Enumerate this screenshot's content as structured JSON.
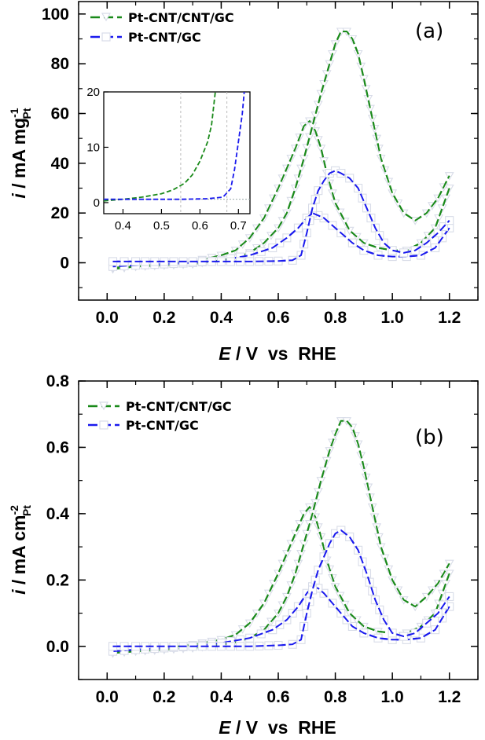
{
  "chart_data": [
    {
      "type": "line",
      "panel_label": "(a)",
      "title": "",
      "xlabel_italic": "E",
      "xlabel_rest": " / V  vs  RHE",
      "ylabel_italic": "i",
      "ylabel_rest": " / mA mg",
      "ylabel_sup": "-1",
      "ylabel_sub": "Pt",
      "xlim": [
        -0.1,
        1.3
      ],
      "ylim": [
        -15,
        105
      ],
      "xticks": [
        "0.0",
        "0.2",
        "0.4",
        "0.6",
        "0.8",
        "1.0",
        "1.2"
      ],
      "xtick_values": [
        0.0,
        0.2,
        0.4,
        0.6,
        0.8,
        1.0,
        1.2
      ],
      "yticks": [
        "0",
        "20",
        "40",
        "60",
        "80",
        "100"
      ],
      "ytick_values": [
        0,
        20,
        40,
        60,
        80,
        100
      ],
      "grid": false,
      "legend_position": "top-left",
      "series": [
        {
          "name": "Pt-CNT/CNT/GC",
          "color": "#1a8a1a",
          "marker": "triangle-down-open",
          "forward": {
            "x": [
              0.02,
              0.1,
              0.2,
              0.3,
              0.4,
              0.45,
              0.5,
              0.55,
              0.6,
              0.63,
              0.66,
              0.69,
              0.72,
              0.75,
              0.78,
              0.8,
              0.82,
              0.84,
              0.86,
              0.88,
              0.9,
              0.93,
              0.96,
              1.0,
              1.04,
              1.08,
              1.12,
              1.16,
              1.2
            ],
            "y": [
              -2,
              -1.5,
              -1,
              -0.5,
              1,
              2,
              4,
              8,
              14,
              20,
              30,
              42,
              55,
              68,
              80,
              88,
              93,
              93,
              90,
              84,
              74,
              58,
              42,
              28,
              20,
              17,
              20,
              26,
              35
            ]
          },
          "reverse": {
            "x": [
              1.2,
              1.15,
              1.1,
              1.05,
              1.0,
              0.95,
              0.9,
              0.85,
              0.8,
              0.77,
              0.75,
              0.73,
              0.71,
              0.69,
              0.66,
              0.63,
              0.6,
              0.55,
              0.5,
              0.45,
              0.4,
              0.3,
              0.2,
              0.1,
              0.02
            ],
            "y": [
              30,
              14,
              8,
              5,
              5,
              6,
              8,
              13,
              24,
              36,
              46,
              53,
              57,
              55,
              46,
              38,
              30,
              18,
              10,
              5,
              3,
              0.5,
              -0.5,
              -1.5,
              -2.5
            ]
          }
        },
        {
          "name": "Pt-CNT/GC",
          "color": "#1a1aee",
          "marker": "square-open",
          "forward": {
            "x": [
              0.02,
              0.1,
              0.2,
              0.3,
              0.4,
              0.5,
              0.6,
              0.65,
              0.68,
              0.7,
              0.72,
              0.74,
              0.76,
              0.78,
              0.8,
              0.82,
              0.85,
              0.88,
              0.91,
              0.94,
              0.97,
              1.0,
              1.04,
              1.08,
              1.12,
              1.16,
              1.2
            ],
            "y": [
              0.5,
              0.5,
              0.5,
              0.5,
              0.5,
              0.5,
              0.7,
              1,
              3,
              12,
              22,
              29,
              33,
              36,
              37,
              36,
              34,
              30,
              22,
              14,
              8,
              5,
              4,
              5,
              8,
              12,
              17
            ]
          },
          "reverse": {
            "x": [
              1.2,
              1.15,
              1.1,
              1.05,
              1.0,
              0.95,
              0.9,
              0.86,
              0.82,
              0.79,
              0.76,
              0.74,
              0.72,
              0.7,
              0.67,
              0.63,
              0.58,
              0.5,
              0.4,
              0.3,
              0.2,
              0.1,
              0.02
            ],
            "y": [
              14,
              6,
              3,
              2.5,
              2.5,
              3,
              5,
              8,
              12,
              15,
              18,
              19,
              20,
              18,
              14,
              10,
              6,
              3,
              1,
              0,
              -0.5,
              -1,
              -1.5
            ]
          }
        }
      ],
      "inset": {
        "xlim": [
          0.35,
          0.73
        ],
        "ylim": [
          -2,
          20
        ],
        "xticks": [
          "0.4",
          "0.5",
          "0.6",
          "0.7"
        ],
        "xtick_values": [
          0.4,
          0.5,
          0.6,
          0.7
        ],
        "yticks": [
          "0",
          "10",
          "20"
        ],
        "ytick_values": [
          0,
          10,
          20
        ],
        "series": [
          {
            "name": "Pt-CNT/CNT/GC",
            "color": "#1a8a1a",
            "x": [
              0.35,
              0.4,
              0.45,
              0.5,
              0.53,
              0.56,
              0.58,
              0.6,
              0.62,
              0.63,
              0.64
            ],
            "y": [
              0.3,
              0.6,
              1.0,
              1.6,
              2.3,
              3.5,
              5,
              7.5,
              11,
              14,
              20
            ]
          },
          {
            "name": "Pt-CNT/GC",
            "color": "#1a1aee",
            "x": [
              0.35,
              0.45,
              0.55,
              0.62,
              0.66,
              0.68,
              0.69,
              0.7,
              0.71,
              0.715
            ],
            "y": [
              0.6,
              0.6,
              0.6,
              0.7,
              1.0,
              2.5,
              6,
              11,
              16,
              20
            ]
          }
        ]
      }
    },
    {
      "type": "line",
      "panel_label": "(b)",
      "title": "",
      "xlabel_italic": "E",
      "xlabel_rest": " / V  vs  RHE",
      "ylabel_italic": "i",
      "ylabel_rest": " / mA cm",
      "ylabel_sup": "-2",
      "ylabel_sub": "Pt",
      "xlim": [
        -0.1,
        1.3
      ],
      "ylim": [
        -0.1,
        0.8
      ],
      "xticks": [
        "0.0",
        "0.2",
        "0.4",
        "0.6",
        "0.8",
        "1.0",
        "1.2"
      ],
      "xtick_values": [
        0.0,
        0.2,
        0.4,
        0.6,
        0.8,
        1.0,
        1.2
      ],
      "yticks": [
        "0.0",
        "0.2",
        "0.4",
        "0.6",
        "0.8"
      ],
      "ytick_values": [
        0.0,
        0.2,
        0.4,
        0.6,
        0.8
      ],
      "grid": false,
      "legend_position": "top-left",
      "series": [
        {
          "name": "Pt-CNT/CNT/GC",
          "color": "#1a8a1a",
          "marker": "triangle-down-open",
          "forward": {
            "x": [
              0.02,
              0.1,
              0.2,
              0.3,
              0.4,
              0.45,
              0.5,
              0.55,
              0.6,
              0.63,
              0.66,
              0.69,
              0.72,
              0.75,
              0.78,
              0.8,
              0.82,
              0.84,
              0.86,
              0.88,
              0.9,
              0.93,
              0.96,
              1.0,
              1.04,
              1.08,
              1.12,
              1.16,
              1.2
            ],
            "y": [
              -0.02,
              -0.015,
              -0.01,
              -0.005,
              0.005,
              0.012,
              0.025,
              0.05,
              0.1,
              0.15,
              0.22,
              0.31,
              0.4,
              0.5,
              0.59,
              0.64,
              0.68,
              0.68,
              0.66,
              0.61,
              0.54,
              0.42,
              0.3,
              0.2,
              0.14,
              0.12,
              0.15,
              0.19,
              0.25
            ]
          },
          "reverse": {
            "x": [
              1.2,
              1.15,
              1.1,
              1.05,
              1.0,
              0.95,
              0.9,
              0.85,
              0.8,
              0.77,
              0.75,
              0.73,
              0.71,
              0.69,
              0.66,
              0.63,
              0.6,
              0.55,
              0.5,
              0.45,
              0.4,
              0.3,
              0.2,
              0.1,
              0.02
            ],
            "y": [
              0.22,
              0.1,
              0.06,
              0.04,
              0.04,
              0.045,
              0.06,
              0.1,
              0.18,
              0.26,
              0.33,
              0.39,
              0.42,
              0.4,
              0.34,
              0.28,
              0.22,
              0.13,
              0.07,
              0.035,
              0.02,
              0.005,
              -0.005,
              -0.012,
              -0.02
            ]
          }
        },
        {
          "name": "Pt-CNT/GC",
          "color": "#1a1aee",
          "marker": "square-open",
          "forward": {
            "x": [
              0.02,
              0.1,
              0.2,
              0.3,
              0.4,
              0.5,
              0.6,
              0.65,
              0.68,
              0.7,
              0.72,
              0.74,
              0.76,
              0.78,
              0.8,
              0.82,
              0.85,
              0.88,
              0.91,
              0.94,
              0.97,
              1.0,
              1.04,
              1.08,
              1.12,
              1.16,
              1.2
            ],
            "y": [
              0.0,
              0.0,
              0.0,
              0.0,
              0.0,
              0.0,
              0.003,
              0.006,
              0.02,
              0.1,
              0.17,
              0.23,
              0.27,
              0.31,
              0.34,
              0.35,
              0.33,
              0.29,
              0.22,
              0.14,
              0.08,
              0.04,
              0.03,
              0.04,
              0.07,
              0.1,
              0.15
            ]
          },
          "reverse": {
            "x": [
              1.2,
              1.15,
              1.1,
              1.05,
              1.0,
              0.95,
              0.9,
              0.86,
              0.82,
              0.79,
              0.76,
              0.74,
              0.72,
              0.7,
              0.67,
              0.63,
              0.58,
              0.5,
              0.4,
              0.3,
              0.2,
              0.1,
              0.02
            ],
            "y": [
              0.12,
              0.05,
              0.025,
              0.02,
              0.02,
              0.025,
              0.04,
              0.06,
              0.1,
              0.13,
              0.16,
              0.175,
              0.18,
              0.16,
              0.12,
              0.08,
              0.05,
              0.025,
              0.01,
              0.0,
              -0.005,
              -0.01,
              -0.015
            ]
          }
        }
      ]
    }
  ]
}
